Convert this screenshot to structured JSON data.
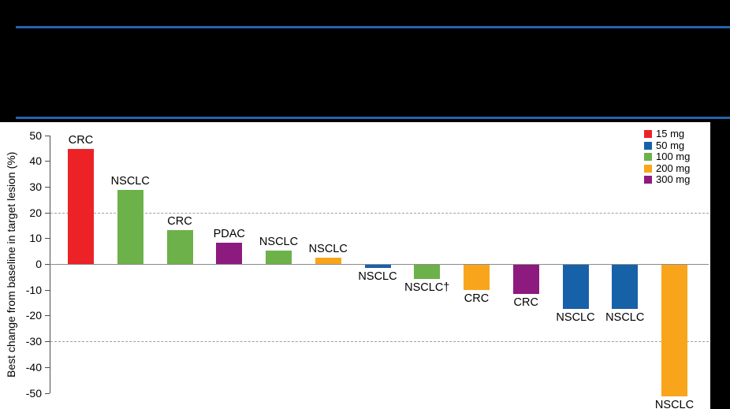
{
  "banner": {
    "accent_color": "#2563AE"
  },
  "chart_data": {
    "type": "bar",
    "title": "",
    "xlabel": "",
    "ylabel": "Best change from baseline in target lesion (%)",
    "ylim": [
      -50,
      50
    ],
    "yticks": [
      50,
      40,
      30,
      20,
      10,
      0,
      -10,
      -20,
      -30,
      -40,
      -50
    ],
    "grid": "off",
    "reference_lines_dashed": [
      20,
      -30
    ],
    "legend_position": "top-right",
    "legend": [
      {
        "label": "15 mg",
        "color": "#EC2227"
      },
      {
        "label": "50 mg",
        "color": "#1761A9"
      },
      {
        "label": "100 mg",
        "color": "#6CB14A"
      },
      {
        "label": "200 mg",
        "color": "#F9A51B"
      },
      {
        "label": "300 mg",
        "color": "#8D1A7E"
      }
    ],
    "bars": [
      {
        "label": "CRC",
        "dose": "15 mg",
        "value": 44.5
      },
      {
        "label": "NSCLC",
        "dose": "100 mg",
        "value": 28.8
      },
      {
        "label": "CRC",
        "dose": "100 mg",
        "value": 13.2
      },
      {
        "label": "PDAC",
        "dose": "300 mg",
        "value": 8.4
      },
      {
        "label": "NSCLC",
        "dose": "100 mg",
        "value": 5.3
      },
      {
        "label": "NSCLC",
        "dose": "200 mg",
        "value": 2.4
      },
      {
        "label": "NSCLC",
        "dose": "50 mg",
        "value": -1.2
      },
      {
        "label": "NSCLC†",
        "dose": "100 mg",
        "value": -5.6
      },
      {
        "label": "CRC",
        "dose": "200 mg",
        "value": -9.8
      },
      {
        "label": "CRC",
        "dose": "300 mg",
        "value": -11.3
      },
      {
        "label": "NSCLC",
        "dose": "50 mg",
        "value": -17.1
      },
      {
        "label": "NSCLC",
        "dose": "50 mg",
        "value": -17.1
      },
      {
        "label": "NSCLC",
        "dose": "200 mg",
        "value": -51.0
      }
    ]
  }
}
